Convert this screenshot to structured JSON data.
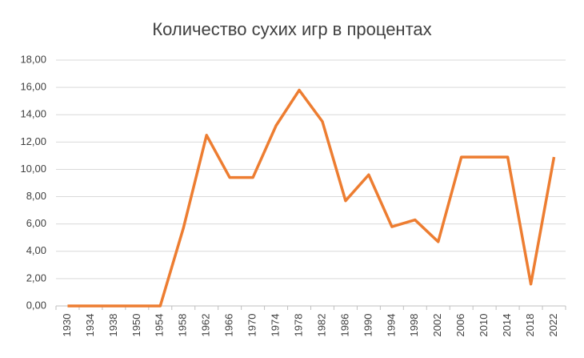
{
  "chart_data": {
    "type": "line",
    "title": "Количество сухих игр в процентах",
    "categories": [
      "1930",
      "1934",
      "1938",
      "1950",
      "1954",
      "1958",
      "1962",
      "1966",
      "1970",
      "1974",
      "1978",
      "1982",
      "1986",
      "1990",
      "1994",
      "1998",
      "2002",
      "2006",
      "2010",
      "2014",
      "2018",
      "2022"
    ],
    "series": [
      {
        "color": "#ed7d31",
        "values": [
          0,
          0,
          0,
          0,
          0,
          5.7,
          12.5,
          9.4,
          9.4,
          13.2,
          15.8,
          13.5,
          7.7,
          9.6,
          5.8,
          6.3,
          4.7,
          10.9,
          10.9,
          10.9,
          1.6,
          10.9
        ]
      }
    ],
    "ylim": [
      0,
      18
    ],
    "yticks": [
      {
        "value": 0,
        "label": "0,00"
      },
      {
        "value": 2,
        "label": "2,00"
      },
      {
        "value": 4,
        "label": "4,00"
      },
      {
        "value": 6,
        "label": "6,00"
      },
      {
        "value": 8,
        "label": "8,00"
      },
      {
        "value": 10,
        "label": "10,00"
      },
      {
        "value": 12,
        "label": "12,00"
      },
      {
        "value": 14,
        "label": "14,00"
      },
      {
        "value": 16,
        "label": "16,00"
      },
      {
        "value": 18,
        "label": "18,00"
      }
    ],
    "grid": true
  }
}
